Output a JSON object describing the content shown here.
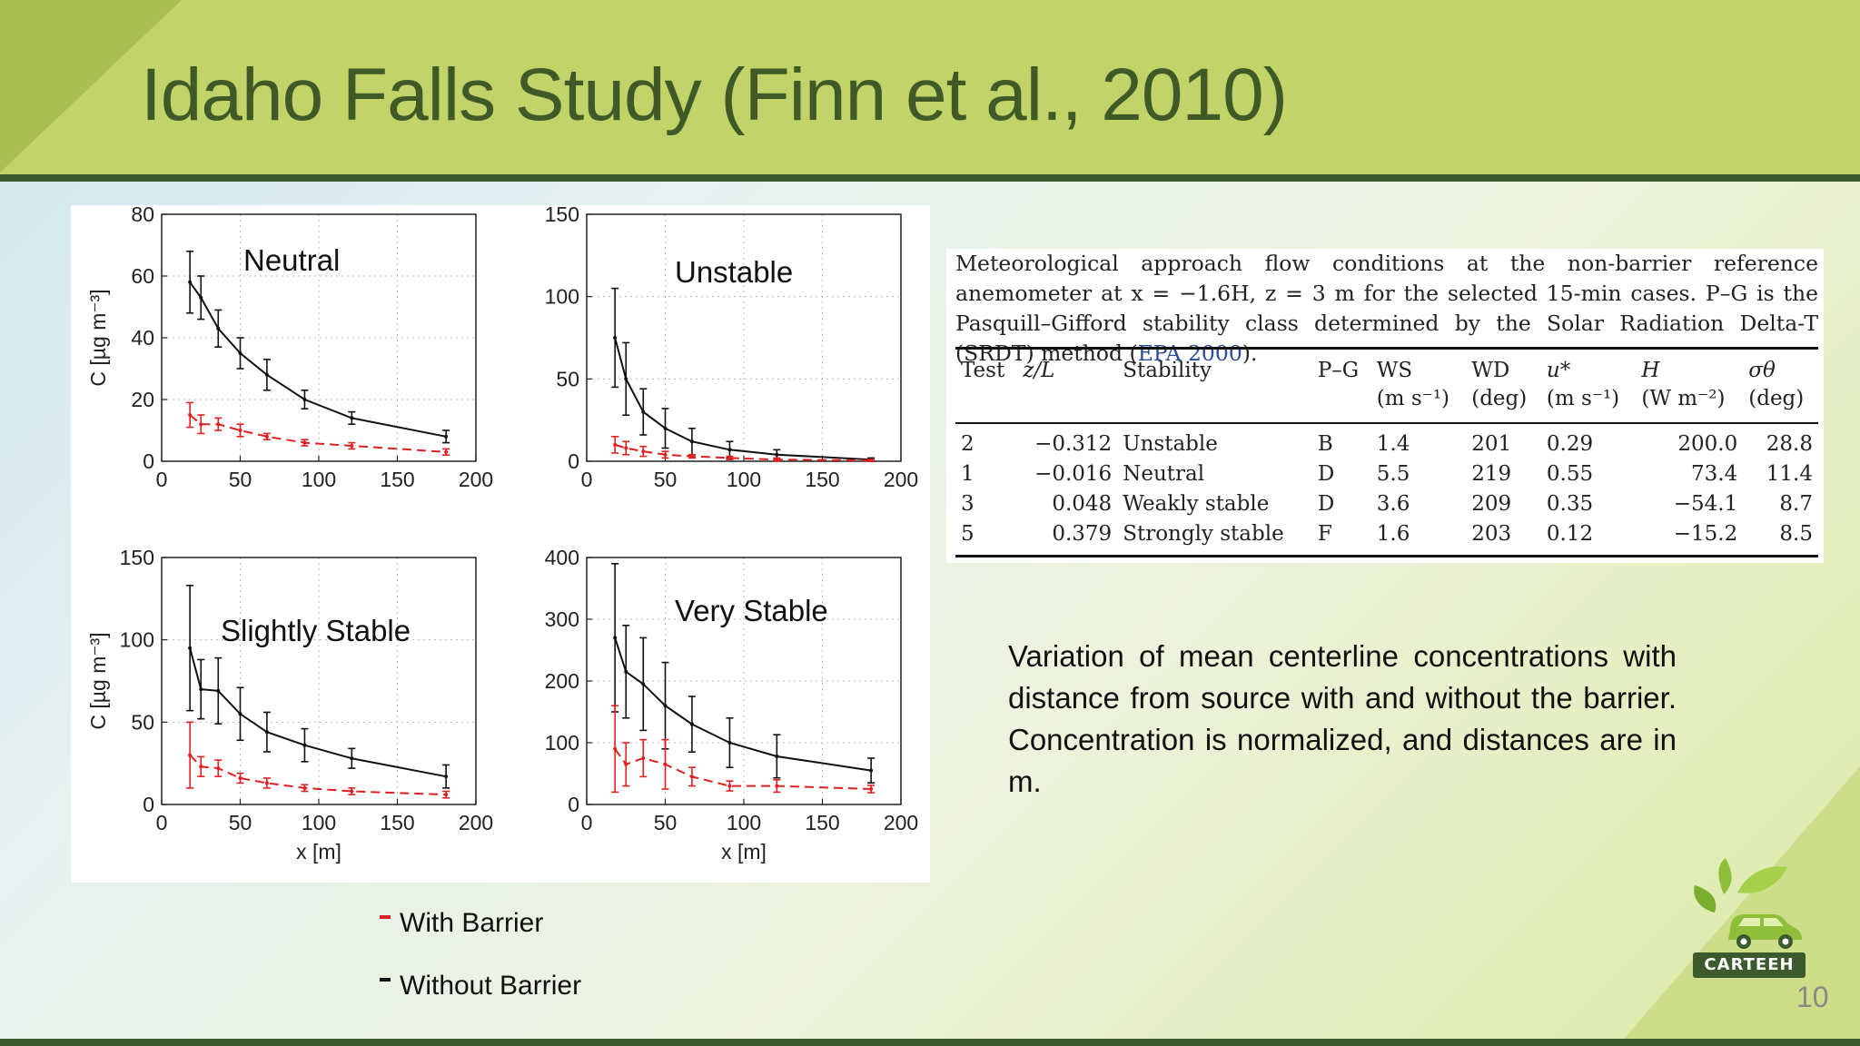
{
  "title": "Idaho Falls Study (Finn et al., 2010)",
  "page_number": "10",
  "logo_text": "CARTEEH",
  "colors": {
    "with_barrier": "#e02020",
    "without_barrier": "#111111",
    "header": "#c2d369",
    "title": "#3f5a27"
  },
  "legend": {
    "with": "With Barrier",
    "without": "Without Barrier"
  },
  "description": "Variation of mean centerline concentrations with distance from source with and without the barrier.  Concentration is normalized, and distances are in m.",
  "table": {
    "caption_main": "Meteorological approach flow conditions at the non-barrier reference anemometer at x = −1.6H, z = 3 m for the selected 15-min cases. P–G is the Pasquill–Gifford stability class determined by the Solar Radiation Delta-T (SRDT) method (",
    "caption_ref": "EPA 2000",
    "caption_end": ").",
    "headers": [
      {
        "top": "Test",
        "sub": ""
      },
      {
        "top": "z/L",
        "sub": ""
      },
      {
        "top": "Stability",
        "sub": ""
      },
      {
        "top": "P–G",
        "sub": ""
      },
      {
        "top": "WS",
        "sub": "(m s⁻¹)"
      },
      {
        "top": "WD",
        "sub": "(deg)"
      },
      {
        "top": "u*",
        "sub": "(m s⁻¹)"
      },
      {
        "top": "H",
        "sub": "(W m⁻²)"
      },
      {
        "top": "σθ",
        "sub": "(deg)"
      }
    ],
    "rows": [
      [
        "2",
        "−0.312",
        "Unstable",
        "B",
        "1.4",
        "201",
        "0.29",
        "200.0",
        "28.8"
      ],
      [
        "1",
        "−0.016",
        "Neutral",
        "D",
        "5.5",
        "219",
        "0.55",
        "73.4",
        "11.4"
      ],
      [
        "3",
        "0.048",
        "Weakly stable",
        "D",
        "3.6",
        "209",
        "0.35",
        "−54.1",
        "8.7"
      ],
      [
        "5",
        "0.379",
        "Strongly stable",
        "F",
        "1.6",
        "203",
        "0.12",
        "−15.2",
        "8.5"
      ]
    ]
  },
  "chart_data": [
    {
      "type": "line",
      "title": "Neutral",
      "ylabel": "C [µg m⁻³]",
      "xlabel": "",
      "xlim": [
        0,
        200
      ],
      "ylim": [
        0,
        80
      ],
      "xticks": [
        0,
        50,
        100,
        150,
        200
      ],
      "yticks": [
        0,
        20,
        40,
        60,
        80
      ],
      "grid": true,
      "series": [
        {
          "key": "without",
          "x": [
            18,
            25,
            36,
            50,
            67,
            91,
            121,
            181
          ],
          "y": [
            58,
            53,
            43,
            35,
            28,
            20,
            14,
            8
          ],
          "err": [
            10,
            7,
            6,
            5,
            5,
            3,
            2,
            2
          ]
        },
        {
          "key": "with",
          "x": [
            18,
            25,
            36,
            50,
            67,
            91,
            121,
            181
          ],
          "y": [
            15,
            12,
            12,
            10,
            8,
            6,
            5,
            3
          ],
          "err": [
            4,
            3,
            2,
            2,
            1,
            1,
            1,
            1
          ]
        }
      ]
    },
    {
      "type": "line",
      "title": "Unstable",
      "ylabel": "",
      "xlabel": "",
      "xlim": [
        0,
        200
      ],
      "ylim": [
        0,
        150
      ],
      "xticks": [
        0,
        50,
        100,
        150,
        200
      ],
      "yticks": [
        0,
        50,
        100,
        150
      ],
      "grid": true,
      "series": [
        {
          "key": "without",
          "x": [
            18,
            25,
            36,
            50,
            67,
            91,
            121,
            181
          ],
          "y": [
            75,
            50,
            30,
            20,
            12,
            7,
            4,
            1
          ],
          "err": [
            30,
            22,
            14,
            12,
            8,
            5,
            3,
            1
          ]
        },
        {
          "key": "with",
          "x": [
            18,
            25,
            36,
            50,
            67,
            91,
            121,
            181
          ],
          "y": [
            10,
            8,
            6,
            4,
            3,
            2,
            1,
            0.5
          ],
          "err": [
            5,
            4,
            3,
            2,
            1,
            1,
            1,
            0.5
          ]
        }
      ]
    },
    {
      "type": "line",
      "title": "Slightly Stable",
      "ylabel": "C [µg m⁻³]",
      "xlabel": "x [m]",
      "xlim": [
        0,
        200
      ],
      "ylim": [
        0,
        150
      ],
      "xticks": [
        0,
        50,
        100,
        150,
        200
      ],
      "yticks": [
        0,
        50,
        100,
        150
      ],
      "grid": true,
      "series": [
        {
          "key": "without",
          "x": [
            18,
            25,
            36,
            50,
            67,
            91,
            121,
            181
          ],
          "y": [
            95,
            70,
            69,
            55,
            44,
            36,
            28,
            17
          ],
          "err": [
            38,
            18,
            20,
            16,
            12,
            10,
            6,
            7
          ]
        },
        {
          "key": "with",
          "x": [
            18,
            25,
            36,
            50,
            67,
            91,
            121,
            181
          ],
          "y": [
            30,
            23,
            22,
            16,
            13,
            10,
            8,
            6
          ],
          "err": [
            20,
            6,
            5,
            3,
            3,
            2,
            2,
            2
          ]
        }
      ]
    },
    {
      "type": "line",
      "title": "Very Stable",
      "ylabel": "",
      "xlabel": "x [m]",
      "xlim": [
        0,
        200
      ],
      "ylim": [
        0,
        400
      ],
      "xticks": [
        0,
        50,
        100,
        150,
        200
      ],
      "yticks": [
        0,
        100,
        200,
        300,
        400
      ],
      "grid": true,
      "series": [
        {
          "key": "without",
          "x": [
            18,
            25,
            36,
            50,
            67,
            91,
            121,
            181
          ],
          "y": [
            270,
            215,
            195,
            160,
            130,
            100,
            78,
            55
          ],
          "err": [
            120,
            75,
            75,
            70,
            45,
            40,
            35,
            20
          ]
        },
        {
          "key": "with",
          "x": [
            18,
            25,
            36,
            50,
            67,
            91,
            121,
            181
          ],
          "y": [
            90,
            65,
            75,
            65,
            45,
            30,
            30,
            25
          ],
          "err": [
            70,
            35,
            30,
            40,
            15,
            8,
            10,
            6
          ]
        }
      ]
    }
  ]
}
